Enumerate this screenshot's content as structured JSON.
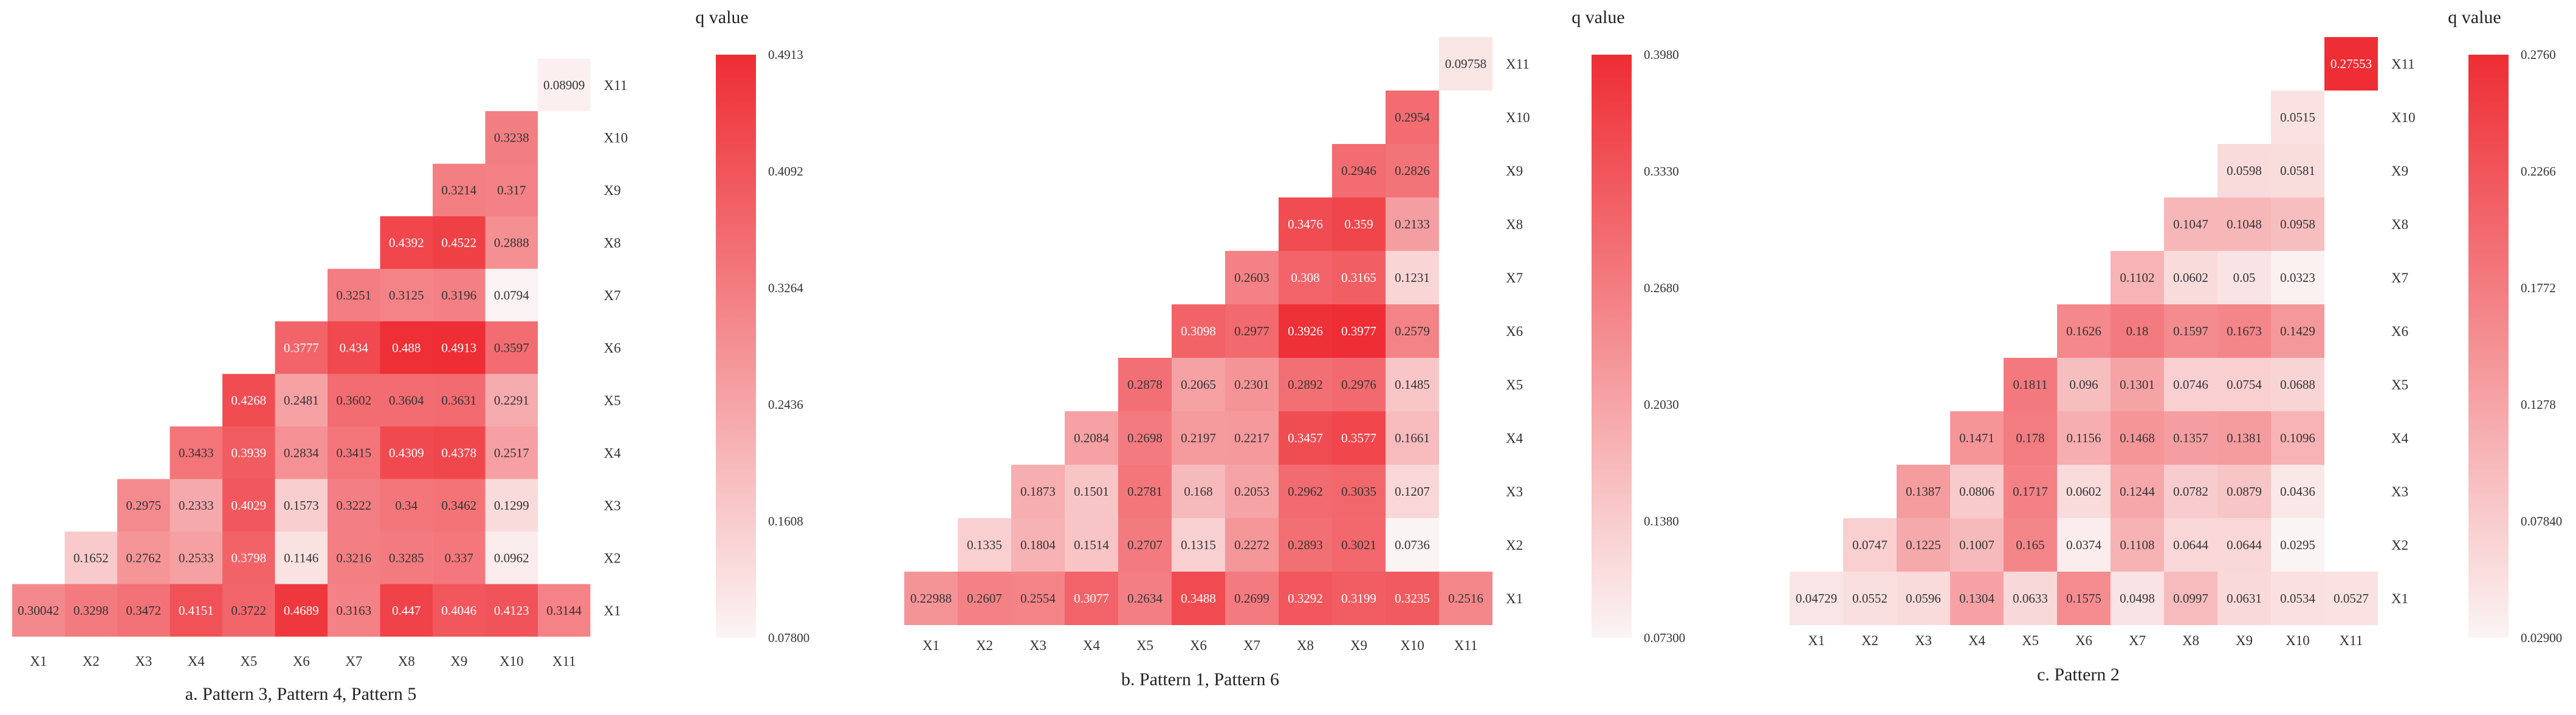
{
  "chart_data": [
    {
      "type": "heatmap",
      "caption": "a. Pattern 3, Pattern 4, Pattern 5",
      "x_labels": [
        "X1",
        "X2",
        "X3",
        "X4",
        "X5",
        "X6",
        "X7",
        "X8",
        "X9",
        "X10",
        "X11"
      ],
      "y_labels": [
        "X1",
        "X2",
        "X3",
        "X4",
        "X5",
        "X6",
        "X7",
        "X8",
        "X9",
        "X10",
        "X11"
      ],
      "colorbar_title": "q value",
      "colorbar_ticks": [
        "0.4913",
        "0.4092",
        "0.3264",
        "0.2436",
        "0.1608",
        "0.07800"
      ],
      "colorbar_range": [
        0.078,
        0.4913
      ],
      "rows": [
        [
          "0.30042",
          "0.3298",
          "0.3472",
          "0.4151",
          "0.3722",
          "0.4689",
          "0.3163",
          "0.447",
          "0.4046",
          "0.4123",
          "0.3144"
        ],
        [
          null,
          "0.1652",
          "0.2762",
          "0.2533",
          "0.3798",
          "0.1146",
          "0.3216",
          "0.3285",
          "0.337",
          "0.0962"
        ],
        [
          null,
          null,
          "0.2975",
          "0.2333",
          "0.4029",
          "0.1573",
          "0.3222",
          "0.34",
          "0.3462",
          "0.1299"
        ],
        [
          null,
          null,
          null,
          "0.3433",
          "0.3939",
          "0.2834",
          "0.3415",
          "0.4309",
          "0.4378",
          "0.2517"
        ],
        [
          null,
          null,
          null,
          null,
          "0.4268",
          "0.2481",
          "0.3602",
          "0.3604",
          "0.3631",
          "0.2291"
        ],
        [
          null,
          null,
          null,
          null,
          null,
          "0.3777",
          "0.434",
          "0.488",
          "0.4913",
          "0.3597"
        ],
        [
          null,
          null,
          null,
          null,
          null,
          null,
          "0.3251",
          "0.3125",
          "0.3196",
          "0.0794"
        ],
        [
          null,
          null,
          null,
          null,
          null,
          null,
          null,
          "0.4392",
          "0.4522",
          "0.2888"
        ],
        [
          null,
          null,
          null,
          null,
          null,
          null,
          null,
          null,
          "0.3214",
          "0.317"
        ],
        [
          null,
          null,
          null,
          null,
          null,
          null,
          null,
          null,
          null,
          "0.3238"
        ],
        [
          null,
          null,
          null,
          null,
          null,
          null,
          null,
          null,
          null,
          null,
          "0.08909"
        ]
      ]
    },
    {
      "type": "heatmap",
      "caption": "b. Pattern 1, Pattern 6",
      "x_labels": [
        "X1",
        "X2",
        "X3",
        "X4",
        "X5",
        "X6",
        "X7",
        "X8",
        "X9",
        "X10",
        "X11"
      ],
      "y_labels": [
        "X1",
        "X2",
        "X3",
        "X4",
        "X5",
        "X6",
        "X7",
        "X8",
        "X9",
        "X10",
        "X11"
      ],
      "colorbar_title": "q value",
      "colorbar_ticks": [
        "0.3980",
        "0.3330",
        "0.2680",
        "0.2030",
        "0.1380",
        "0.07300"
      ],
      "colorbar_range": [
        0.073,
        0.398
      ],
      "rows": [
        [
          "0.22988",
          "0.2607",
          "0.2554",
          "0.3077",
          "0.2634",
          "0.3488",
          "0.2699",
          "0.3292",
          "0.3199",
          "0.3235",
          "0.2516"
        ],
        [
          null,
          "0.1335",
          "0.1804",
          "0.1514",
          "0.2707",
          "0.1315",
          "0.2272",
          "0.2893",
          "0.3021",
          "0.0736"
        ],
        [
          null,
          null,
          "0.1873",
          "0.1501",
          "0.2781",
          "0.168",
          "0.2053",
          "0.2962",
          "0.3035",
          "0.1207"
        ],
        [
          null,
          null,
          null,
          "0.2084",
          "0.2698",
          "0.2197",
          "0.2217",
          "0.3457",
          "0.3577",
          "0.1661"
        ],
        [
          null,
          null,
          null,
          null,
          "0.2878",
          "0.2065",
          "0.2301",
          "0.2892",
          "0.2976",
          "0.1485"
        ],
        [
          null,
          null,
          null,
          null,
          null,
          "0.3098",
          "0.2977",
          "0.3926",
          "0.3977",
          "0.2579"
        ],
        [
          null,
          null,
          null,
          null,
          null,
          null,
          "0.2603",
          "0.308",
          "0.3165",
          "0.1231"
        ],
        [
          null,
          null,
          null,
          null,
          null,
          null,
          null,
          "0.3476",
          "0.359",
          "0.2133"
        ],
        [
          null,
          null,
          null,
          null,
          null,
          null,
          null,
          null,
          "0.2946",
          "0.2826"
        ],
        [
          null,
          null,
          null,
          null,
          null,
          null,
          null,
          null,
          null,
          "0.2954"
        ],
        [
          null,
          null,
          null,
          null,
          null,
          null,
          null,
          null,
          null,
          null,
          "0.09758"
        ]
      ]
    },
    {
      "type": "heatmap",
      "caption": "c. Pattern 2",
      "x_labels": [
        "X1",
        "X2",
        "X3",
        "X4",
        "X5",
        "X6",
        "X7",
        "X8",
        "X9",
        "X10",
        "X11"
      ],
      "y_labels": [
        "X1",
        "X2",
        "X3",
        "X4",
        "X5",
        "X6",
        "X7",
        "X8",
        "X9",
        "X10",
        "X11"
      ],
      "colorbar_title": "q value",
      "colorbar_ticks": [
        "0.2760",
        "0.2266",
        "0.1772",
        "0.1278",
        "0.07840",
        "0.02900"
      ],
      "colorbar_range": [
        0.029,
        0.276
      ],
      "rows": [
        [
          "0.04729",
          "0.0552",
          "0.0596",
          "0.1304",
          "0.0633",
          "0.1575",
          "0.0498",
          "0.0997",
          "0.0631",
          "0.0534",
          "0.0527"
        ],
        [
          null,
          "0.0747",
          "0.1225",
          "0.1007",
          "0.165",
          "0.0374",
          "0.1108",
          "0.0644",
          "0.0644",
          "0.0295"
        ],
        [
          null,
          null,
          "0.1387",
          "0.0806",
          "0.1717",
          "0.0602",
          "0.1244",
          "0.0782",
          "0.0879",
          "0.0436"
        ],
        [
          null,
          null,
          null,
          "0.1471",
          "0.178",
          "0.1156",
          "0.1468",
          "0.1357",
          "0.1381",
          "0.1096"
        ],
        [
          null,
          null,
          null,
          null,
          "0.1811",
          "0.096",
          "0.1301",
          "0.0746",
          "0.0754",
          "0.0688"
        ],
        [
          null,
          null,
          null,
          null,
          null,
          "0.1626",
          "0.18",
          "0.1597",
          "0.1673",
          "0.1429"
        ],
        [
          null,
          null,
          null,
          null,
          null,
          null,
          "0.1102",
          "0.0602",
          "0.05",
          "0.0323"
        ],
        [
          null,
          null,
          null,
          null,
          null,
          null,
          null,
          "0.1047",
          "0.1048",
          "0.0958"
        ],
        [
          null,
          null,
          null,
          null,
          null,
          null,
          null,
          null,
          "0.0598",
          "0.0581"
        ],
        [
          null,
          null,
          null,
          null,
          null,
          null,
          null,
          null,
          null,
          "0.0515"
        ],
        [
          null,
          null,
          null,
          null,
          null,
          null,
          null,
          null,
          null,
          null,
          "0.27553"
        ]
      ]
    }
  ],
  "colors": {
    "low": "#fbf4f4",
    "high": "#ee2d34",
    "text_dark": "#333333",
    "text_light": "#ffffff"
  }
}
